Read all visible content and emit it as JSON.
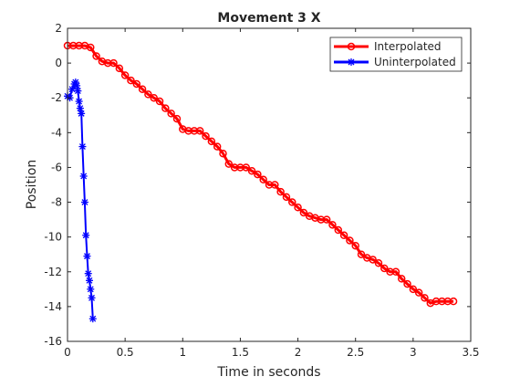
{
  "chart_data": {
    "type": "line",
    "title": "Movement 3 X",
    "xlabel": "Time in seconds",
    "ylabel": "Position",
    "xlim": [
      0,
      3.5
    ],
    "ylim": [
      -16,
      2
    ],
    "xticks": [
      0,
      0.5,
      1,
      1.5,
      2,
      2.5,
      3,
      3.5
    ],
    "xtick_labels": [
      "0",
      "0.5",
      "1",
      "1.5",
      "2",
      "2.5",
      "3",
      "3.5"
    ],
    "yticks": [
      2,
      0,
      -2,
      -4,
      -6,
      -8,
      -10,
      -12,
      -14,
      -16
    ],
    "ytick_labels": [
      "2",
      "0",
      "-2",
      "-4",
      "-6",
      "-8",
      "-10",
      "-12",
      "-14",
      "-16"
    ],
    "grid": false,
    "legend": "top-right",
    "series": [
      {
        "name": "Interpolated",
        "color": "#ff0000",
        "marker": "circle",
        "x": [
          0.0,
          0.05,
          0.1,
          0.15,
          0.2,
          0.25,
          0.3,
          0.35,
          0.4,
          0.45,
          0.5,
          0.55,
          0.6,
          0.65,
          0.7,
          0.75,
          0.8,
          0.85,
          0.9,
          0.95,
          1.0,
          1.05,
          1.1,
          1.15,
          1.2,
          1.25,
          1.3,
          1.35,
          1.4,
          1.45,
          1.5,
          1.55,
          1.6,
          1.65,
          1.7,
          1.75,
          1.8,
          1.85,
          1.9,
          1.95,
          2.0,
          2.05,
          2.1,
          2.15,
          2.2,
          2.25,
          2.3,
          2.35,
          2.4,
          2.45,
          2.5,
          2.55,
          2.6,
          2.65,
          2.7,
          2.75,
          2.8,
          2.85,
          2.9,
          2.95,
          3.0,
          3.05,
          3.1,
          3.15,
          3.2,
          3.25,
          3.3,
          3.35
        ],
        "y": [
          1.0,
          1.0,
          1.0,
          1.0,
          0.9,
          0.4,
          0.1,
          0.0,
          0.0,
          -0.3,
          -0.7,
          -1.0,
          -1.2,
          -1.5,
          -1.8,
          -2.0,
          -2.2,
          -2.6,
          -2.9,
          -3.2,
          -3.8,
          -3.9,
          -3.9,
          -3.9,
          -4.2,
          -4.5,
          -4.8,
          -5.2,
          -5.8,
          -6.0,
          -6.0,
          -6.0,
          -6.2,
          -6.4,
          -6.7,
          -7.0,
          -7.0,
          -7.4,
          -7.7,
          -8.0,
          -8.3,
          -8.6,
          -8.8,
          -8.9,
          -9.0,
          -9.0,
          -9.3,
          -9.6,
          -9.9,
          -10.2,
          -10.5,
          -11.0,
          -11.2,
          -11.3,
          -11.5,
          -11.8,
          -12.0,
          -12.0,
          -12.4,
          -12.7,
          -13.0,
          -13.2,
          -13.5,
          -13.8,
          -13.7,
          -13.7,
          -13.7,
          -13.7
        ]
      },
      {
        "name": "Uninterpolated",
        "color": "#0000ff",
        "marker": "asterisk",
        "x": [
          0.0,
          0.02,
          0.04,
          0.06,
          0.07,
          0.08,
          0.09,
          0.1,
          0.11,
          0.12,
          0.13,
          0.14,
          0.15,
          0.16,
          0.17,
          0.18,
          0.19,
          0.2,
          0.21,
          0.22
        ],
        "y": [
          -1.9,
          -2.0,
          -1.5,
          -1.2,
          -1.1,
          -1.3,
          -1.6,
          -2.2,
          -2.6,
          -2.9,
          -4.8,
          -6.5,
          -8.0,
          -9.9,
          -11.1,
          -12.1,
          -12.5,
          -13.0,
          -13.5,
          -14.7
        ]
      }
    ]
  }
}
